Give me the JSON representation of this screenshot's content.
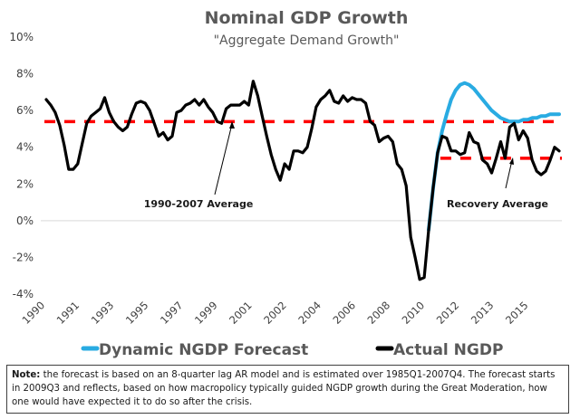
{
  "chart_data": {
    "type": "line",
    "title": "Nominal GDP Growth",
    "subtitle": "\"Aggregate Demand Growth\"",
    "xlabel": "",
    "ylabel": "",
    "ylim": [
      -4,
      10
    ],
    "y_ticks": [
      "10%",
      "8%",
      "6%",
      "4%",
      "2%",
      "0%",
      "-2%",
      "-4%"
    ],
    "y_tick_values": [
      10,
      8,
      6,
      4,
      2,
      0,
      -2,
      -4
    ],
    "x_tick_labels": [
      "1990",
      "1991",
      "1993",
      "1995",
      "1997",
      "1999",
      "2001",
      "2002",
      "2004",
      "2006",
      "2008",
      "2010",
      "2012",
      "2013",
      "2015"
    ],
    "x_start": "1990Q1",
    "frequency": "quarterly",
    "grid": false,
    "series": [
      {
        "name": "Actual NGDP",
        "color": "#000000",
        "values": [
          6.6,
          6.3,
          5.9,
          5.2,
          4.1,
          2.8,
          2.8,
          3.1,
          4.2,
          5.3,
          5.7,
          5.9,
          6.1,
          6.7,
          5.9,
          5.4,
          5.1,
          4.9,
          5.1,
          5.8,
          6.4,
          6.5,
          6.4,
          6.0,
          5.3,
          4.6,
          4.8,
          4.4,
          4.6,
          5.9,
          6.0,
          6.3,
          6.4,
          6.6,
          6.3,
          6.6,
          6.2,
          5.9,
          5.4,
          5.3,
          6.1,
          6.3,
          6.3,
          6.3,
          6.5,
          6.3,
          7.6,
          6.8,
          5.7,
          4.6,
          3.6,
          2.8,
          2.2,
          3.1,
          2.8,
          3.8,
          3.8,
          3.7,
          4.0,
          5.0,
          6.2,
          6.6,
          6.8,
          7.1,
          6.5,
          6.4,
          6.8,
          6.5,
          6.7,
          6.6,
          6.6,
          6.4,
          5.4,
          5.2,
          4.3,
          4.5,
          4.6,
          4.3,
          3.1,
          2.8,
          1.9,
          -0.9,
          -2.0,
          -3.2,
          -3.1,
          -0.5,
          1.8,
          3.7,
          4.6,
          4.5,
          3.8,
          3.8,
          3.6,
          3.7,
          4.8,
          4.3,
          4.2,
          3.3,
          3.1,
          2.6,
          3.4,
          4.3,
          3.4,
          5.1,
          5.3,
          4.4,
          4.9,
          4.5,
          3.3,
          2.7,
          2.5,
          2.7,
          3.3,
          4.0,
          3.8
        ],
        "start_index": 0
      },
      {
        "name": "Dynamic NGDP Forecast",
        "color": "#29abe2",
        "values": [
          -0.5,
          1.8,
          3.7,
          4.9,
          5.8,
          6.6,
          7.1,
          7.4,
          7.5,
          7.4,
          7.2,
          6.9,
          6.6,
          6.3,
          6.0,
          5.8,
          5.6,
          5.5,
          5.4,
          5.4,
          5.4,
          5.5,
          5.5,
          5.6,
          5.6,
          5.7,
          5.7,
          5.8,
          5.8,
          5.8
        ],
        "start_index": 85
      }
    ],
    "reference_lines": [
      {
        "name": "1990-2007 Average",
        "value": 5.4,
        "start_index": 0,
        "end_index": 114,
        "color": "#ff0000",
        "style": "dashed"
      },
      {
        "name": "Recovery Average",
        "value": 3.4,
        "start_index": 88,
        "end_index": 114,
        "color": "#ff0000",
        "style": "dashed"
      }
    ],
    "annotations": [
      {
        "text": "1990-2007 Average",
        "points_to": "1990-2007 Average line"
      },
      {
        "text": "Recovery Average",
        "points_to": "Recovery Average line"
      }
    ],
    "legend": {
      "position": "bottom",
      "entries": [
        {
          "label": "Dynamic NGDP Forecast",
          "color": "#29abe2"
        },
        {
          "label": "Actual NGDP",
          "color": "#000000"
        }
      ]
    }
  },
  "note": {
    "label": "Note:",
    "text": " the forecast is based on an 8-quarter lag AR model and is estimated over 1985Q1-2007Q4. The forecast starts in 2009Q3 and reflects, based on how macropolicy typically guided NGDP growth during the Great Moderation, how one would have expected it to do so after the crisis."
  }
}
